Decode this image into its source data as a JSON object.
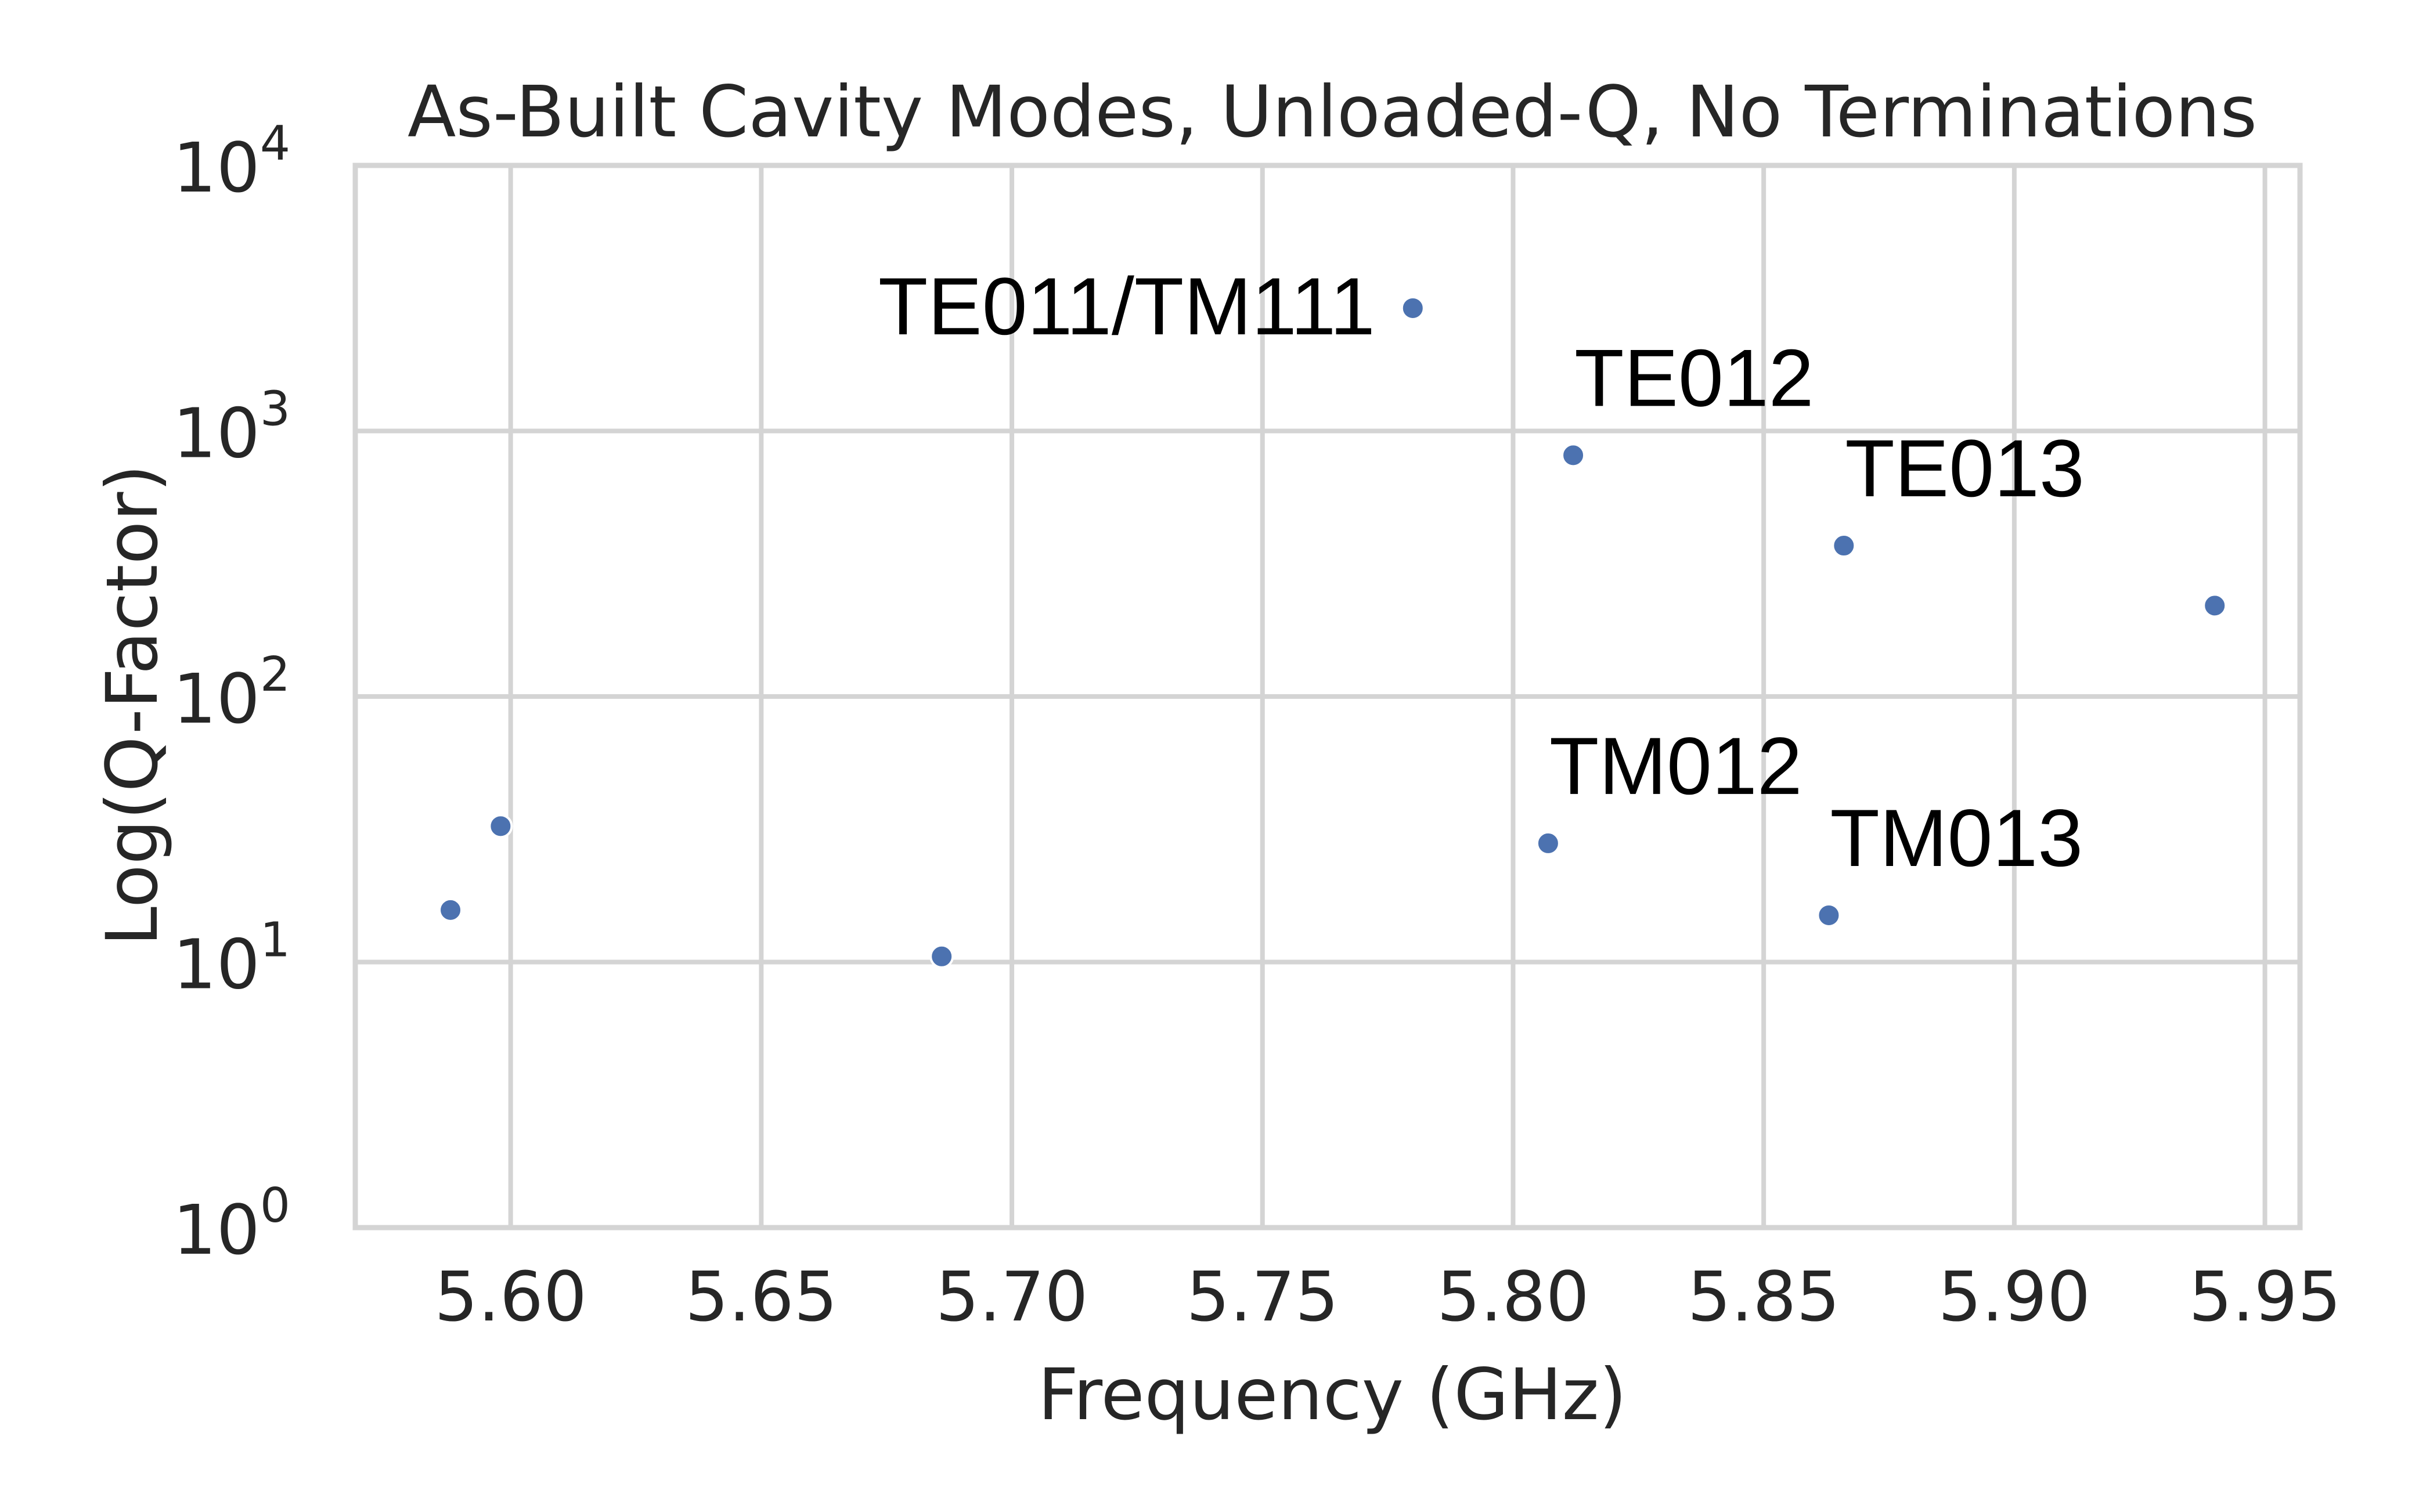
{
  "colors": {
    "marker": "#4c72b0",
    "grid": "#d4d4d4",
    "frame": "#d4d4d4",
    "text": "#262626",
    "annotation": "#000000"
  },
  "chart_data": {
    "type": "scatter",
    "title": "As-Built Cavity Modes, Unloaded-Q, No Terminations",
    "xlabel": "Frequency (GHz)",
    "ylabel": "Log(Q-Factor)",
    "xlim": [
      5.569,
      5.957
    ],
    "ylim": [
      1,
      10000
    ],
    "yscale": "log",
    "grid": true,
    "x_ticks": [
      {
        "value": 5.6,
        "label": "5.60"
      },
      {
        "value": 5.65,
        "label": "5.65"
      },
      {
        "value": 5.7,
        "label": "5.70"
      },
      {
        "value": 5.75,
        "label": "5.75"
      },
      {
        "value": 5.8,
        "label": "5.80"
      },
      {
        "value": 5.85,
        "label": "5.85"
      },
      {
        "value": 5.9,
        "label": "5.90"
      },
      {
        "value": 5.95,
        "label": "5.95"
      }
    ],
    "y_ticks": [
      {
        "value": 1,
        "base": "10",
        "exp": "0"
      },
      {
        "value": 10,
        "base": "10",
        "exp": "1"
      },
      {
        "value": 100,
        "base": "10",
        "exp": "2"
      },
      {
        "value": 1000,
        "base": "10",
        "exp": "3"
      },
      {
        "value": 10000,
        "base": "10",
        "exp": "4"
      }
    ],
    "points": [
      {
        "x": 5.588,
        "y": 15.7,
        "label": ""
      },
      {
        "x": 5.598,
        "y": 32.5,
        "label": ""
      },
      {
        "x": 5.686,
        "y": 10.5,
        "label": ""
      },
      {
        "x": 5.78,
        "y": 2900,
        "label": "TE011/TM111"
      },
      {
        "x": 5.812,
        "y": 810,
        "label": "TE012"
      },
      {
        "x": 5.807,
        "y": 28,
        "label": "TM012"
      },
      {
        "x": 5.866,
        "y": 370,
        "label": "TE013"
      },
      {
        "x": 5.863,
        "y": 15,
        "label": "TM013"
      },
      {
        "x": 5.94,
        "y": 220,
        "label": ""
      }
    ]
  }
}
